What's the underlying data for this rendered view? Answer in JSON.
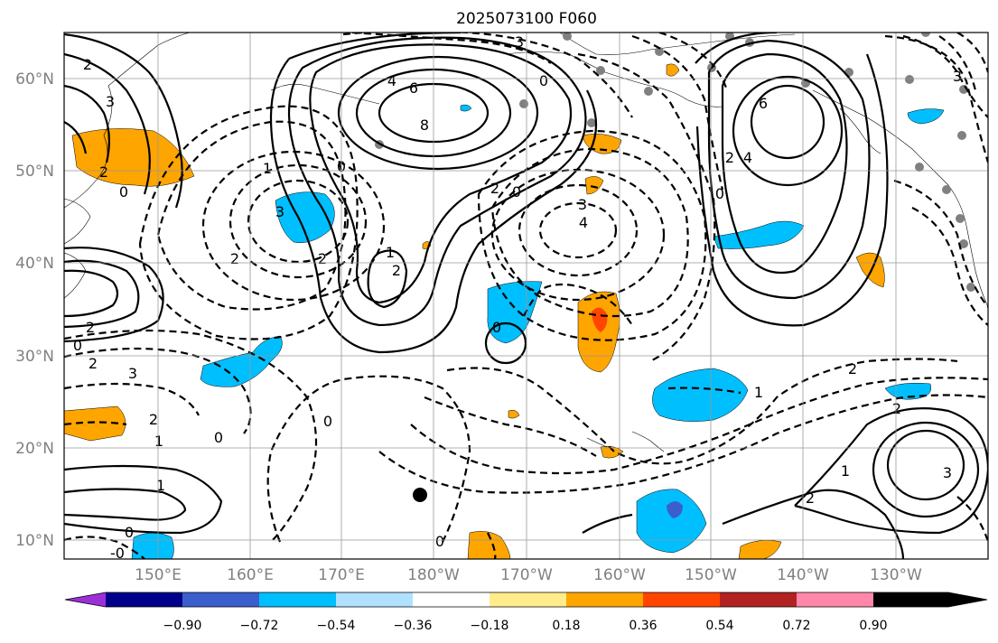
{
  "title": "2025073100 F060",
  "latitude_labels": [
    "60°N",
    "50°N",
    "40°N",
    "30°N",
    "20°N",
    "10°N"
  ],
  "longitude_labels": [
    "150°E",
    "160°E",
    "170°E",
    "180°W",
    "170°W",
    "160°W",
    "150°W",
    "140°W",
    "130°W"
  ],
  "colorbar": {
    "ticks": [
      "−0.90",
      "−0.72",
      "−0.54",
      "−0.36",
      "−0.18",
      "0.18",
      "0.36",
      "0.54",
      "0.72",
      "0.90"
    ],
    "colors": [
      "#9b30d9",
      "#00008b",
      "#3a5fcd",
      "#00bfff",
      "#b0e2ff",
      "#ffffff",
      "#ffec8b",
      "#ffa500",
      "#ff4500",
      "#b22222",
      "#ff88aa"
    ]
  },
  "contour_labels": [
    {
      "text": "2"
    },
    {
      "text": "3"
    },
    {
      "text": "2"
    },
    {
      "text": "0"
    },
    {
      "text": "4"
    },
    {
      "text": "6"
    },
    {
      "text": "8"
    },
    {
      "text": "3"
    },
    {
      "text": "0"
    },
    {
      "text": "6"
    },
    {
      "text": "4"
    },
    {
      "text": "2"
    },
    {
      "text": "0"
    },
    {
      "text": "1"
    },
    {
      "text": "0"
    },
    {
      "text": "3"
    },
    {
      "text": "2"
    },
    {
      "text": "2"
    },
    {
      "text": "2"
    },
    {
      "text": "0"
    },
    {
      "text": "3"
    },
    {
      "text": "4"
    },
    {
      "text": "2"
    },
    {
      "text": "1"
    },
    {
      "text": "2"
    },
    {
      "text": "0"
    },
    {
      "text": "3"
    },
    {
      "text": "2"
    },
    {
      "text": "2"
    },
    {
      "text": "0"
    },
    {
      "text": "1"
    },
    {
      "text": "2"
    },
    {
      "text": "3"
    },
    {
      "text": "0"
    },
    {
      "text": "1"
    },
    {
      "text": "0"
    },
    {
      "text": "-0"
    },
    {
      "text": "2"
    },
    {
      "text": "1"
    },
    {
      "text": "0"
    },
    {
      "text": "2"
    },
    {
      "text": "3"
    },
    {
      "text": "1"
    },
    {
      "text": "0"
    }
  ]
}
